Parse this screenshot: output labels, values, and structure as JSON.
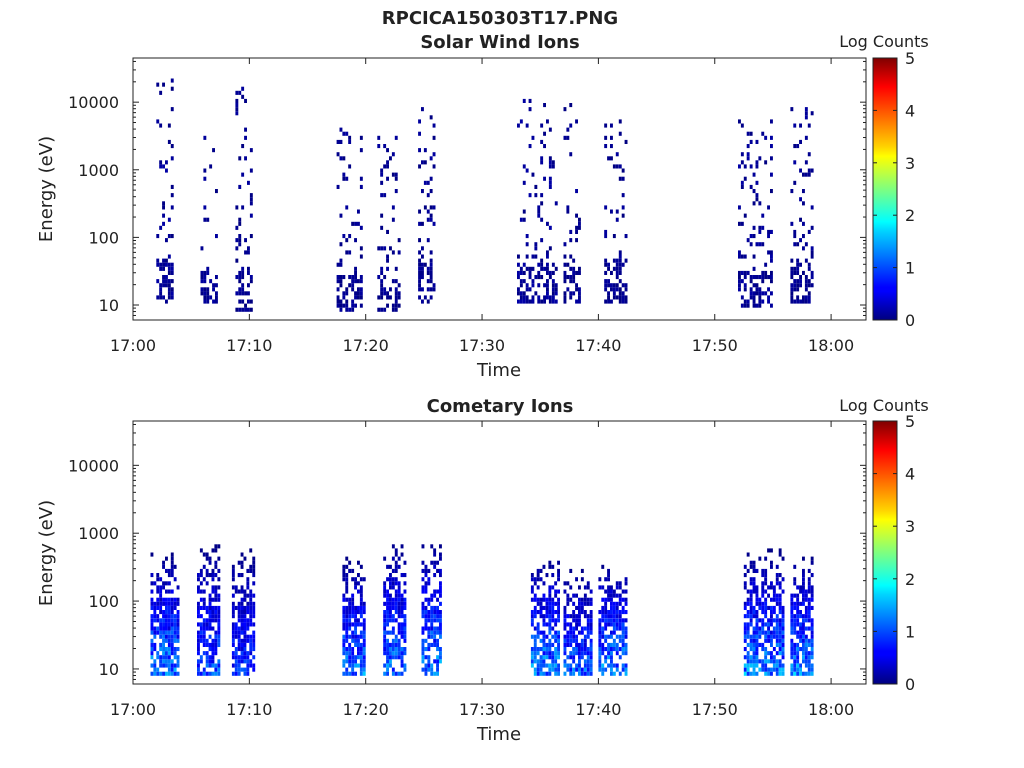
{
  "figure": {
    "title": "RPCICA150303T17.PNG"
  },
  "colorbar_ticks": [
    "0",
    "1",
    "2",
    "3",
    "4",
    "5"
  ],
  "chart_data": [
    {
      "type": "heatmap",
      "title": "Solar Wind Ions",
      "xlabel": "Time",
      "ylabel": "Energy (eV)",
      "x_ticks": [
        "17:00",
        "17:10",
        "17:20",
        "17:30",
        "17:40",
        "17:50",
        "18:00"
      ],
      "x_range_minutes": [
        0,
        63
      ],
      "y_ticks": [
        "10",
        "100",
        "1000",
        "10000"
      ],
      "y_range": [
        6,
        45000
      ],
      "y_scale": "log",
      "colorbar_label": "Log Counts",
      "colorbar_range": [
        0,
        5
      ],
      "colormap": "jet",
      "grid": false,
      "bursts": [
        {
          "start_min": 2.0,
          "end_min": 3.4,
          "emin": 10,
          "emax": 20000,
          "peak_log": 0.5
        },
        {
          "start_min": 5.8,
          "end_min": 7.1,
          "emin": 10,
          "emax": 3000,
          "peak_log": 0.4
        },
        {
          "start_min": 8.8,
          "end_min": 10.1,
          "emin": 7,
          "emax": 15000,
          "peak_log": 0.4
        },
        {
          "start_min": 17.5,
          "end_min": 19.6,
          "emin": 7,
          "emax": 4000,
          "peak_log": 0.4
        },
        {
          "start_min": 21.0,
          "end_min": 23.0,
          "emin": 7,
          "emax": 3000,
          "peak_log": 0.4
        },
        {
          "start_min": 24.5,
          "end_min": 26.0,
          "emin": 10,
          "emax": 8000,
          "peak_log": 0.4
        },
        {
          "start_min": 33.0,
          "end_min": 36.5,
          "emin": 10,
          "emax": 10000,
          "peak_log": 0.5
        },
        {
          "start_min": 37.0,
          "end_min": 38.5,
          "emin": 10,
          "emax": 10000,
          "peak_log": 0.4
        },
        {
          "start_min": 40.5,
          "end_min": 42.5,
          "emin": 10,
          "emax": 8000,
          "peak_log": 0.4
        },
        {
          "start_min": 52.0,
          "end_min": 55.0,
          "emin": 9,
          "emax": 5000,
          "peak_log": 0.5
        },
        {
          "start_min": 56.5,
          "end_min": 58.5,
          "emin": 10,
          "emax": 10000,
          "peak_log": 0.4
        }
      ]
    },
    {
      "type": "heatmap",
      "title": "Cometary Ions",
      "xlabel": "Time",
      "ylabel": "Energy (eV)",
      "x_ticks": [
        "17:00",
        "17:10",
        "17:20",
        "17:30",
        "17:40",
        "17:50",
        "18:00"
      ],
      "x_range_minutes": [
        0,
        63
      ],
      "y_ticks": [
        "10",
        "100",
        "1000",
        "10000"
      ],
      "y_range": [
        6,
        45000
      ],
      "y_scale": "log",
      "colorbar_label": "Log Counts",
      "colorbar_range": [
        0,
        5
      ],
      "colormap": "jet",
      "grid": false,
      "bursts": [
        {
          "start_min": 1.5,
          "end_min": 4.0,
          "emin": 7,
          "emax": 500,
          "peak_log": 1.8
        },
        {
          "start_min": 5.5,
          "end_min": 7.3,
          "emin": 7,
          "emax": 650,
          "peak_log": 1.4
        },
        {
          "start_min": 8.5,
          "end_min": 10.5,
          "emin": 7,
          "emax": 550,
          "peak_log": 1.2
        },
        {
          "start_min": 18.0,
          "end_min": 19.8,
          "emin": 7,
          "emax": 450,
          "peak_log": 1.7
        },
        {
          "start_min": 21.5,
          "end_min": 23.5,
          "emin": 7,
          "emax": 750,
          "peak_log": 1.7
        },
        {
          "start_min": 24.8,
          "end_min": 26.5,
          "emin": 7,
          "emax": 800,
          "peak_log": 1.8
        },
        {
          "start_min": 34.2,
          "end_min": 36.5,
          "emin": 7,
          "emax": 450,
          "peak_log": 1.8
        },
        {
          "start_min": 37.0,
          "end_min": 39.5,
          "emin": 7,
          "emax": 300,
          "peak_log": 1.5
        },
        {
          "start_min": 40.0,
          "end_min": 42.5,
          "emin": 7,
          "emax": 400,
          "peak_log": 1.8
        },
        {
          "start_min": 52.5,
          "end_min": 56.0,
          "emin": 7,
          "emax": 550,
          "peak_log": 1.8
        },
        {
          "start_min": 56.5,
          "end_min": 58.5,
          "emin": 7,
          "emax": 450,
          "peak_log": 1.8
        }
      ]
    }
  ]
}
